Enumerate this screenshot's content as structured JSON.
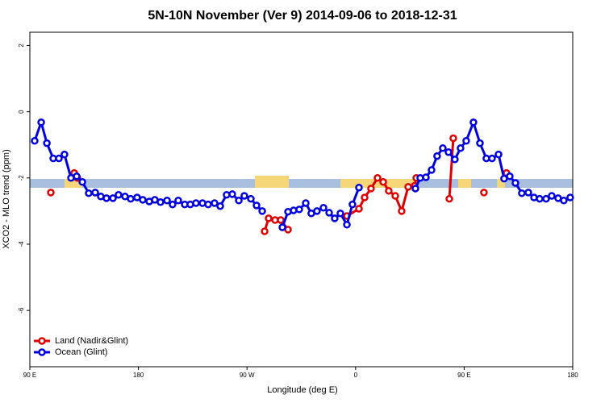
{
  "chart_data": {
    "type": "line",
    "title": "5N-10N November (Ver 9)   2014-09-06 to 2018-12-31",
    "x_label": "Longitude (deg E)",
    "y_label": "XCO2 - MLO trend (ppm)",
    "xlim": [
      90,
      540
    ],
    "ylim": [
      -7.7,
      2.4
    ],
    "xticks": [
      {
        "value": 90,
        "label": "90 E"
      },
      {
        "value": 180,
        "label": "180"
      },
      {
        "value": 270,
        "label": "90 W"
      },
      {
        "value": 360,
        "label": "0"
      },
      {
        "value": 450,
        "label": "90 E"
      },
      {
        "value": 540,
        "label": "180"
      }
    ],
    "yticks": [
      2,
      0,
      -2,
      -4,
      -6
    ],
    "legend": "bottom-left",
    "series": [
      {
        "name": "Land (Nadir&Glint)",
        "color": "#e00000",
        "x": [
          107.4,
          115,
          126.8,
          129.4,
          200,
          284.6,
          287.9,
          293.3,
          298.0,
          304.0,
          320,
          352.8,
          362.8,
          367.5,
          372.8,
          378.2,
          382.9,
          387.5,
          392.9,
          398.2,
          403.6,
          408.9,
          410.3,
          420,
          437.7,
          441.0,
          450,
          466.4,
          475,
          485.1
        ],
        "values": [
          -2.44,
          null,
          -1.85,
          -2.0,
          null,
          -3.61,
          -3.22,
          -3.27,
          -3.27,
          -3.56,
          null,
          -3.15,
          -2.93,
          -2.59,
          -2.32,
          -2.0,
          -2.12,
          -2.39,
          -2.54,
          -3.0,
          -2.27,
          -2.24,
          -2.0,
          null,
          -2.63,
          -0.8,
          null,
          -2.44,
          null,
          -1.85
        ]
      },
      {
        "name": "Ocean (Glint)",
        "color": "#0000e0",
        "x": [
          94.0,
          99.4,
          104.1,
          109.4,
          114.1,
          118.7,
          124.1,
          128.8,
          133.5,
          138.8,
          144.2,
          148.8,
          153.5,
          158.9,
          163.5,
          168.9,
          173.6,
          178.9,
          183.6,
          189.0,
          193.6,
          198.3,
          203.7,
          208.3,
          213.0,
          218.4,
          223.0,
          227.7,
          233.1,
          237.8,
          243.1,
          247.8,
          253.1,
          257.8,
          263.2,
          267.8,
          273.2,
          277.9,
          282.6,
          290,
          299.3,
          304.0,
          308.6,
          313.3,
          318.7,
          323.3,
          328.0,
          333.4,
          338.1,
          342.7,
          347.4,
          352.8,
          357.4,
          362.8,
          380,
          409.6,
          413.6,
          418.3,
          423.0,
          427.6,
          432.3,
          437.0,
          442.3,
          447.0,
          451.7,
          457.7,
          463.1,
          468.4,
          473.1,
          478.5,
          483.1,
          487.8,
          492.5,
          497.8,
          503.2,
          507.9,
          512.6,
          517.9,
          522.6,
          527.9,
          532.6,
          537.9
        ],
        "values": [
          -0.88,
          -0.32,
          -0.95,
          -1.41,
          -1.41,
          -1.29,
          -2.0,
          -1.95,
          -2.12,
          -2.46,
          -2.44,
          -2.56,
          -2.61,
          -2.61,
          -2.51,
          -2.56,
          -2.63,
          -2.59,
          -2.66,
          -2.71,
          -2.66,
          -2.73,
          -2.68,
          -2.8,
          -2.68,
          -2.8,
          -2.8,
          -2.76,
          -2.76,
          -2.8,
          -2.76,
          -2.85,
          -2.51,
          -2.49,
          -2.68,
          -2.54,
          -2.63,
          -2.83,
          -3.0,
          null,
          -3.49,
          -3.02,
          -2.98,
          -2.95,
          -2.76,
          -3.07,
          -3.0,
          -2.9,
          -3.05,
          -3.22,
          -3.07,
          -3.41,
          -2.8,
          -2.29,
          null,
          -2.32,
          -2.0,
          -1.98,
          -1.76,
          -1.34,
          -1.1,
          -1.22,
          -1.44,
          -1.1,
          -0.88,
          -0.32,
          -0.95,
          -1.41,
          -1.41,
          -1.29,
          -2.02,
          -1.95,
          -2.15,
          -2.46,
          -2.44,
          -2.59,
          -2.63,
          -2.63,
          -2.54,
          -2.61,
          -2.68,
          -2.59
        ]
      }
    ]
  }
}
